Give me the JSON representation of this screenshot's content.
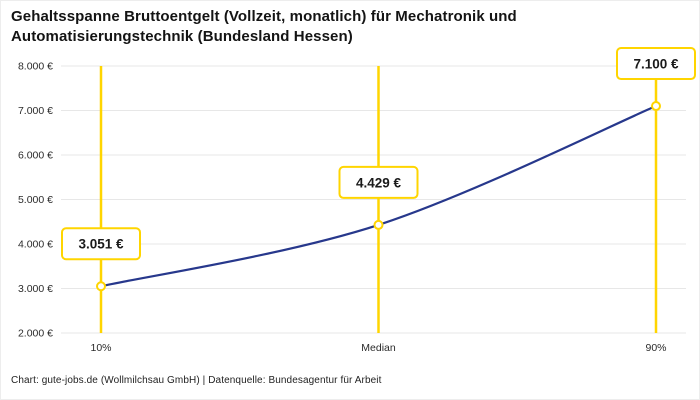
{
  "footer": {
    "credit": "Chart: gute-jobs.de (Wollmilchsau GmbH) | Datenquelle: Bundesagentur für Arbeit"
  },
  "colors": {
    "line": "#27388c",
    "marker": "#ffd500",
    "marker_fill": "#ffffff",
    "grid": "#e7e7e7",
    "label_box_border": "#ffd500",
    "label_box_fill": "#ffffff",
    "title_text": "#141414",
    "axis_text": "#2b2b2b",
    "label_text": "#1a1a1a"
  },
  "chart_data": {
    "type": "line",
    "title": "Gehaltsspanne Bruttoentgelt (Vollzeit, monatlich) für Mechatronik und Automatisierungstechnik (Bundesland Hessen)",
    "categories": [
      "10%",
      "Median",
      "90%"
    ],
    "values": [
      3051,
      4429,
      7100
    ],
    "value_labels": [
      "3.051 €",
      "4.429 €",
      "7.100 €"
    ],
    "y_ticks": [
      2000,
      3000,
      4000,
      5000,
      6000,
      7000,
      8000
    ],
    "y_tick_labels": [
      "2.000 €",
      "3.000 €",
      "4.000 €",
      "5.000 €",
      "6.000 €",
      "7.000 €",
      "8.000 €"
    ],
    "ylim": [
      2000,
      8000
    ],
    "xlabel": "",
    "ylabel": "",
    "grid": "horizontal",
    "legend": "none"
  }
}
